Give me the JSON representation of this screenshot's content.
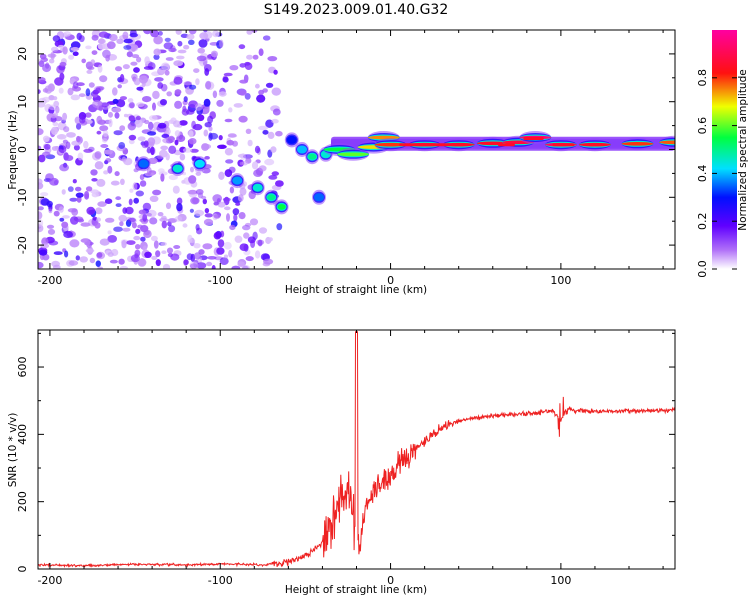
{
  "title": "S149.2023.009.01.40.G32",
  "chart_data": [
    {
      "type": "heatmap",
      "xlabel": "Height of straight line (km)",
      "ylabel": "Frequency (Hz)",
      "xlim": [
        -207,
        167
      ],
      "ylim": [
        -25,
        25
      ],
      "x_ticks": [
        -200,
        -100,
        0,
        100
      ],
      "y_ticks": [
        -20,
        -10,
        0,
        10,
        20
      ],
      "colorbar": {
        "label": "Normalized spectral amplitude",
        "range": [
          0.0,
          1.0
        ],
        "ticks": [
          0.0,
          0.2,
          0.4,
          0.6,
          0.8
        ],
        "colormap": [
          "#ffffff",
          "#a020f0",
          "#0000ff",
          "#00ffff",
          "#00ff00",
          "#ffff00",
          "#ff0000",
          "#ff00ff"
        ]
      },
      "noise_region": {
        "x": [
          -207,
          -65
        ],
        "amplitude": 0.15
      },
      "signal_ridge": [
        {
          "x": -145,
          "f": -3.0,
          "a": 0.35
        },
        {
          "x": -125,
          "f": -4.0,
          "a": 0.45
        },
        {
          "x": -112,
          "f": -3.0,
          "a": 0.42
        },
        {
          "x": -90,
          "f": -6.5,
          "a": 0.38
        },
        {
          "x": -78,
          "f": -8.0,
          "a": 0.45
        },
        {
          "x": -70,
          "f": -10.0,
          "a": 0.5
        },
        {
          "x": -64,
          "f": -12.0,
          "a": 0.55
        },
        {
          "x": -58,
          "f": 2.0,
          "a": 0.3
        },
        {
          "x": -52,
          "f": 0.0,
          "a": 0.4
        },
        {
          "x": -46,
          "f": -1.5,
          "a": 0.5
        },
        {
          "x": -42,
          "f": -10.0,
          "a": 0.35
        },
        {
          "x": -38,
          "f": -1.0,
          "a": 0.45
        },
        {
          "x": -30,
          "f": 0.0,
          "a": 0.55
        },
        {
          "x": -22,
          "f": -1.0,
          "a": 0.6
        },
        {
          "x": -10,
          "f": 0.5,
          "a": 0.7
        },
        {
          "x": -4,
          "f": 2.5,
          "a": 0.75
        },
        {
          "x": 0,
          "f": 1.0,
          "a": 0.8
        },
        {
          "x": 20,
          "f": 1.0,
          "a": 0.9
        },
        {
          "x": 40,
          "f": 1.0,
          "a": 0.85
        },
        {
          "x": 60,
          "f": 1.3,
          "a": 0.85
        },
        {
          "x": 75,
          "f": 1.5,
          "a": 0.88
        },
        {
          "x": 85,
          "f": 2.5,
          "a": 0.95
        },
        {
          "x": 100,
          "f": 1.0,
          "a": 0.92
        },
        {
          "x": 120,
          "f": 1.0,
          "a": 0.85
        },
        {
          "x": 145,
          "f": 1.2,
          "a": 0.8
        },
        {
          "x": 167,
          "f": 1.5,
          "a": 0.78
        }
      ]
    },
    {
      "type": "line",
      "xlabel": "Height of straight line (km)",
      "ylabel": "SNR (10 * v/v)",
      "xlim": [
        -207,
        167
      ],
      "ylim": [
        0,
        710
      ],
      "x_ticks": [
        -200,
        -100,
        0,
        100
      ],
      "y_ticks": [
        0,
        200,
        400,
        600
      ],
      "line_color": "#ee2222",
      "series": [
        {
          "x": [
            -207,
            -180,
            -150,
            -120,
            -100,
            -85,
            -75,
            -68,
            -63,
            -55,
            -48,
            -40,
            -35,
            -30,
            -25,
            -20,
            -18,
            -15,
            -10,
            -5,
            0,
            10,
            20,
            30,
            40,
            50,
            60,
            70,
            80,
            90,
            95,
            100,
            103,
            110,
            120,
            140,
            167
          ],
          "values": [
            12,
            10,
            14,
            12,
            15,
            14,
            12,
            16,
            20,
            28,
            45,
            80,
            150,
            200,
            230,
            80,
            60,
            180,
            230,
            260,
            280,
            330,
            380,
            420,
            440,
            450,
            455,
            458,
            462,
            465,
            470,
            440,
            475,
            470,
            468,
            470,
            472
          ]
        }
      ],
      "spike": {
        "x": -20,
        "value": 705
      }
    }
  ]
}
